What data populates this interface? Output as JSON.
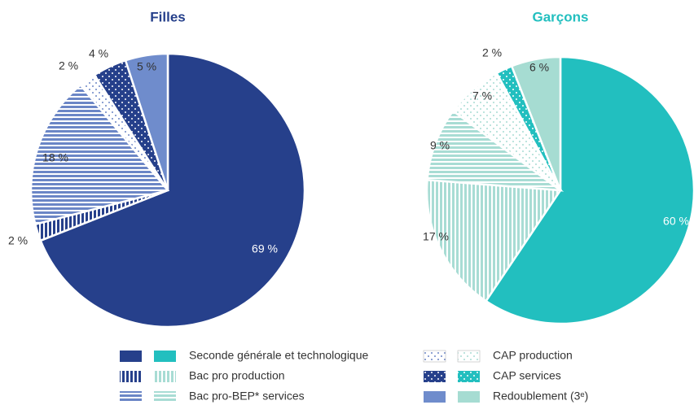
{
  "legend": {
    "categories": [
      "Seconde générale et technologique",
      "Bac pro production",
      "Bac pro-BEP* services",
      "CAP production",
      "CAP services",
      "Redoublement (3ᵉ)"
    ],
    "patterns": [
      "solid",
      "vertical",
      "horizontal",
      "dots-light",
      "dots-dark",
      "solid"
    ]
  },
  "chart_data": [
    {
      "type": "pie",
      "title": "Filles",
      "title_color": "#26408b",
      "values": [
        69,
        2,
        18,
        2,
        4,
        5
      ],
      "value_labels": [
        "69 %",
        "2 %",
        "18 %",
        "2 %",
        "4 %",
        "5 %"
      ],
      "colors": [
        "#26408b",
        "#26408b",
        "#6b86c6",
        "#6b86c6",
        "#26408b",
        "#6f8ccc"
      ]
    },
    {
      "type": "pie",
      "title": "Garçons",
      "title_color": "#22bfbf",
      "values": [
        60,
        17,
        9,
        7,
        2,
        6
      ],
      "value_labels": [
        "60 %",
        "17 %",
        "9 %",
        "7 %",
        "2 %",
        "6 %"
      ],
      "colors": [
        "#22bfbf",
        "#a8dcd4",
        "#a8dcd4",
        "#a8dcd4",
        "#22bfbf",
        "#a6dcd2"
      ]
    }
  ]
}
